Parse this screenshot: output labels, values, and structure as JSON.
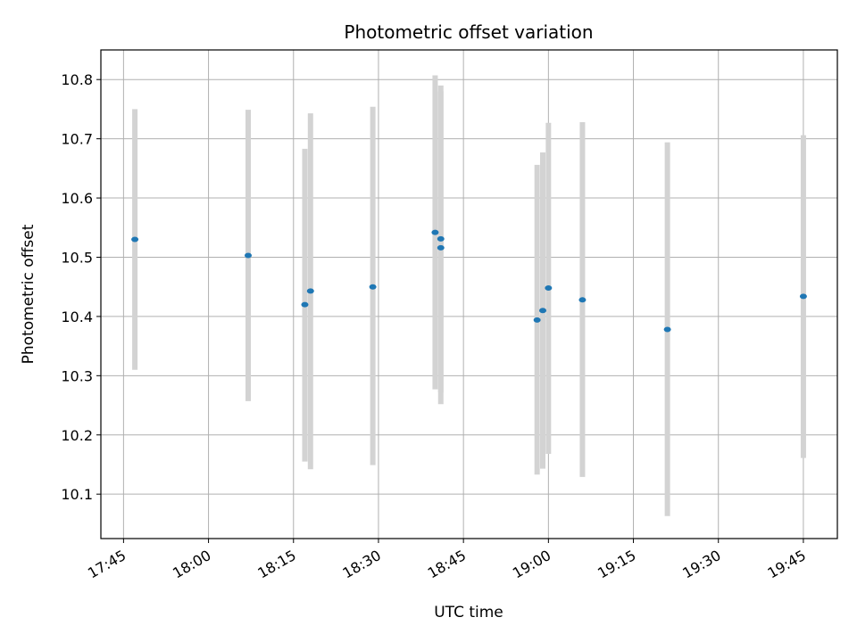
{
  "chart_data": {
    "type": "scatter",
    "title": "Photometric offset variation",
    "xlabel": "UTC time",
    "ylabel": "Photometric offset",
    "x_ticks": [
      "17:45",
      "18:00",
      "18:15",
      "18:30",
      "18:45",
      "19:00",
      "19:15",
      "19:30",
      "19:45"
    ],
    "y_ticks": [
      "10.1",
      "10.2",
      "10.3",
      "10.4",
      "10.5",
      "10.6",
      "10.7",
      "10.8"
    ],
    "xlim": [
      "17:41",
      "19:51"
    ],
    "ylim": [
      10.025,
      10.85
    ],
    "grid": true,
    "colors": {
      "point": "#1f77b4",
      "errorbar": "#d3d3d3",
      "grid": "#b0b0b0"
    },
    "points": [
      {
        "x": "17:47",
        "y": 10.53,
        "ylow": 10.31,
        "yhigh": 10.75
      },
      {
        "x": "18:07",
        "y": 10.503,
        "ylow": 10.257,
        "yhigh": 10.749
      },
      {
        "x": "18:17",
        "y": 10.42,
        "ylow": 10.155,
        "yhigh": 10.683
      },
      {
        "x": "18:18",
        "y": 10.443,
        "ylow": 10.142,
        "yhigh": 10.743
      },
      {
        "x": "18:29",
        "y": 10.45,
        "ylow": 10.149,
        "yhigh": 10.754
      },
      {
        "x": "18:40",
        "y": 10.542,
        "ylow": 10.277,
        "yhigh": 10.807
      },
      {
        "x": "18:41",
        "y": 10.516,
        "ylow": 10.252,
        "yhigh": 10.78
      },
      {
        "x": "18:41",
        "y": 10.531,
        "ylow": 10.272,
        "yhigh": 10.79
      },
      {
        "x": "18:58",
        "y": 10.394,
        "ylow": 10.133,
        "yhigh": 10.656
      },
      {
        "x": "18:59",
        "y": 10.41,
        "ylow": 10.143,
        "yhigh": 10.677
      },
      {
        "x": "19:00",
        "y": 10.448,
        "ylow": 10.168,
        "yhigh": 10.727
      },
      {
        "x": "19:06",
        "y": 10.428,
        "ylow": 10.129,
        "yhigh": 10.728
      },
      {
        "x": "19:21",
        "y": 10.378,
        "ylow": 10.063,
        "yhigh": 10.694
      },
      {
        "x": "19:45",
        "y": 10.434,
        "ylow": 10.161,
        "yhigh": 10.706
      }
    ]
  }
}
